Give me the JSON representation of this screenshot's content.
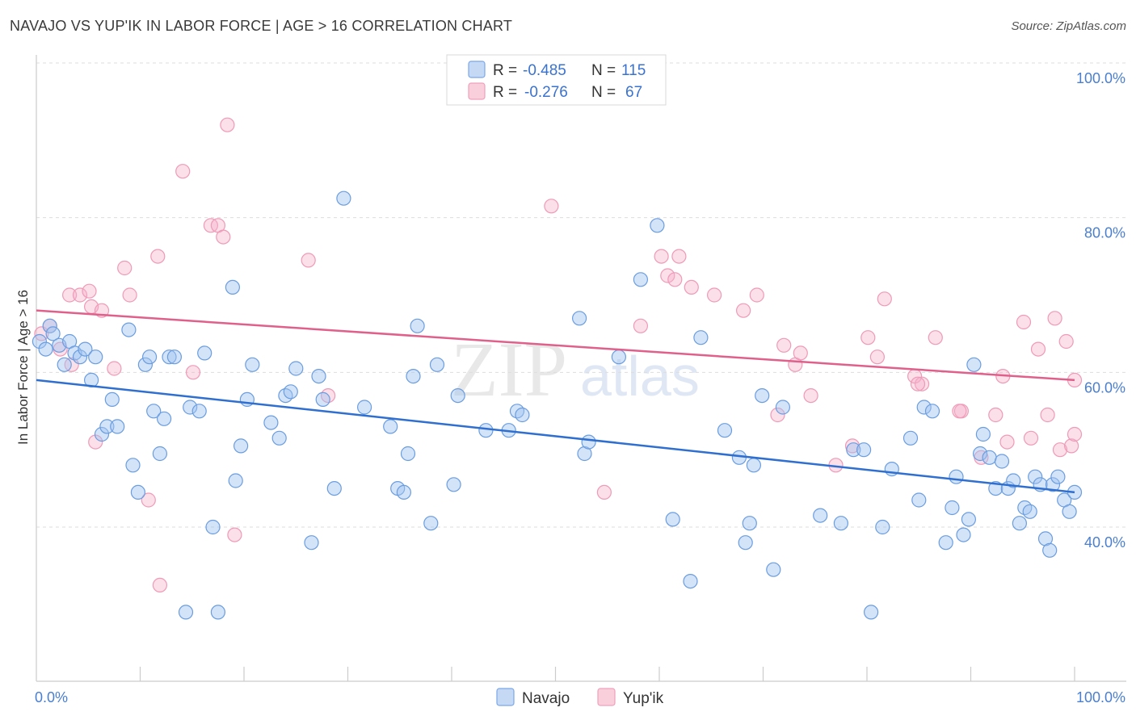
{
  "header": {
    "title": "NAVAJO VS YUP'IK IN LABOR FORCE | AGE > 16 CORRELATION CHART",
    "source": "Source: ZipAtlas.com"
  },
  "watermark": {
    "zip": "ZIP",
    "atlas": "atlas"
  },
  "legend": {
    "navajo": {
      "r_label": "R = ",
      "r_value": "-0.485",
      "n_label": "N = ",
      "n_value": "115",
      "color": "#7aa8e8"
    },
    "yupik": {
      "r_label": "R = ",
      "r_value": "-0.276",
      "n_label": "N = ",
      "n_value": "67",
      "color": "#f0a0bc"
    }
  },
  "bottom_legend": {
    "navajo": "Navajo",
    "yupik": "Yup'ik"
  },
  "chart_data": {
    "type": "scatter",
    "title": "NAVAJO VS YUP'IK IN LABOR FORCE | AGE > 16 CORRELATION CHART",
    "xlabel": "",
    "ylabel": "In Labor Force | Age > 16",
    "xlim": [
      0,
      100
    ],
    "ylim": [
      20,
      102
    ],
    "x_ticks": [
      {
        "value": 0,
        "label": "0.0%"
      },
      {
        "value": 100,
        "label": "100.0%"
      }
    ],
    "y_ticks": [
      {
        "value": 40,
        "label": "40.0%"
      },
      {
        "value": 60,
        "label": "60.0%"
      },
      {
        "value": 80,
        "label": "80.0%"
      },
      {
        "value": 100,
        "label": "100.0%"
      }
    ],
    "grid": true,
    "legend_position": "top-center",
    "series": [
      {
        "name": "Navajo",
        "color": "#6a9de0",
        "trend": {
          "x": [
            0,
            100
          ],
          "y": [
            59.0,
            44.5
          ]
        },
        "points": [
          [
            0.3,
            64.0
          ],
          [
            0.9,
            63.0
          ],
          [
            1.3,
            66.0
          ],
          [
            1.6,
            65.0
          ],
          [
            2.2,
            63.5
          ],
          [
            2.7,
            61.0
          ],
          [
            3.2,
            64.0
          ],
          [
            3.7,
            62.5
          ],
          [
            4.2,
            62.0
          ],
          [
            4.7,
            63.0
          ],
          [
            5.3,
            59.0
          ],
          [
            5.7,
            62.0
          ],
          [
            6.3,
            52.0
          ],
          [
            6.8,
            53.0
          ],
          [
            7.3,
            56.5
          ],
          [
            7.8,
            53.0
          ],
          [
            8.9,
            65.5
          ],
          [
            9.3,
            48.0
          ],
          [
            9.8,
            44.5
          ],
          [
            10.5,
            61.0
          ],
          [
            10.9,
            62.0
          ],
          [
            11.3,
            55.0
          ],
          [
            11.9,
            49.5
          ],
          [
            12.3,
            54.0
          ],
          [
            12.8,
            62.0
          ],
          [
            13.3,
            62.0
          ],
          [
            14.4,
            29.0
          ],
          [
            14.8,
            55.5
          ],
          [
            15.7,
            55.0
          ],
          [
            16.2,
            62.5
          ],
          [
            17.0,
            40.0
          ],
          [
            17.5,
            29.0
          ],
          [
            18.9,
            71.0
          ],
          [
            19.2,
            46.0
          ],
          [
            19.7,
            50.5
          ],
          [
            20.3,
            56.5
          ],
          [
            20.8,
            61.0
          ],
          [
            22.6,
            53.5
          ],
          [
            23.4,
            51.5
          ],
          [
            24.0,
            57.0
          ],
          [
            24.5,
            57.5
          ],
          [
            25.0,
            60.5
          ],
          [
            26.5,
            38.0
          ],
          [
            27.2,
            59.5
          ],
          [
            27.6,
            56.5
          ],
          [
            28.7,
            45.0
          ],
          [
            29.6,
            82.5
          ],
          [
            31.6,
            55.5
          ],
          [
            34.1,
            53.0
          ],
          [
            34.8,
            45.0
          ],
          [
            35.4,
            44.5
          ],
          [
            35.8,
            49.5
          ],
          [
            36.3,
            59.5
          ],
          [
            36.7,
            66.0
          ],
          [
            38.0,
            40.5
          ],
          [
            38.6,
            61.0
          ],
          [
            40.2,
            45.5
          ],
          [
            40.6,
            57.0
          ],
          [
            43.3,
            52.5
          ],
          [
            45.5,
            52.5
          ],
          [
            46.3,
            55.0
          ],
          [
            46.8,
            54.5
          ],
          [
            52.8,
            49.5
          ],
          [
            53.2,
            51.0
          ],
          [
            52.3,
            67.0
          ],
          [
            56.1,
            62.0
          ],
          [
            58.2,
            72.0
          ],
          [
            59.8,
            79.0
          ],
          [
            61.3,
            41.0
          ],
          [
            63.0,
            33.0
          ],
          [
            64.0,
            64.5
          ],
          [
            66.3,
            52.5
          ],
          [
            67.7,
            49.0
          ],
          [
            68.3,
            38.0
          ],
          [
            68.7,
            40.5
          ],
          [
            69.1,
            48.0
          ],
          [
            69.9,
            57.0
          ],
          [
            71.0,
            34.5
          ],
          [
            71.9,
            55.5
          ],
          [
            75.5,
            41.5
          ],
          [
            77.5,
            40.5
          ],
          [
            78.7,
            50.0
          ],
          [
            79.7,
            50.0
          ],
          [
            80.4,
            29.0
          ],
          [
            81.5,
            40.0
          ],
          [
            82.4,
            47.5
          ],
          [
            84.2,
            51.5
          ],
          [
            85.0,
            43.5
          ],
          [
            85.5,
            55.5
          ],
          [
            86.3,
            55.0
          ],
          [
            87.6,
            38.0
          ],
          [
            88.2,
            42.5
          ],
          [
            88.6,
            46.5
          ],
          [
            89.3,
            39.0
          ],
          [
            89.8,
            41.0
          ],
          [
            90.3,
            61.0
          ],
          [
            90.9,
            49.5
          ],
          [
            91.2,
            52.0
          ],
          [
            91.8,
            49.0
          ],
          [
            92.4,
            45.0
          ],
          [
            93.0,
            48.5
          ],
          [
            93.6,
            45.0
          ],
          [
            94.1,
            46.0
          ],
          [
            94.7,
            40.5
          ],
          [
            95.2,
            42.5
          ],
          [
            95.7,
            42.0
          ],
          [
            96.2,
            46.5
          ],
          [
            96.7,
            45.5
          ],
          [
            97.2,
            38.5
          ],
          [
            97.6,
            37.0
          ],
          [
            97.9,
            45.5
          ],
          [
            98.4,
            46.5
          ],
          [
            99.0,
            43.5
          ],
          [
            99.5,
            42.0
          ],
          [
            100.0,
            44.5
          ]
        ]
      },
      {
        "name": "Yup'ik",
        "color": "#f0a0bc",
        "trend": {
          "x": [
            0,
            100
          ],
          "y": [
            68.0,
            59.0
          ]
        },
        "points": [
          [
            0.5,
            65.0
          ],
          [
            1.3,
            66.0
          ],
          [
            2.3,
            63.0
          ],
          [
            3.4,
            61.0
          ],
          [
            3.2,
            70.0
          ],
          [
            4.2,
            70.0
          ],
          [
            5.1,
            70.5
          ],
          [
            5.3,
            68.5
          ],
          [
            5.7,
            51.0
          ],
          [
            6.3,
            68.0
          ],
          [
            7.5,
            60.5
          ],
          [
            8.5,
            73.5
          ],
          [
            9.0,
            70.0
          ],
          [
            10.8,
            43.5
          ],
          [
            11.7,
            75.0
          ],
          [
            11.9,
            32.5
          ],
          [
            14.1,
            86.0
          ],
          [
            15.1,
            60.0
          ],
          [
            16.8,
            79.0
          ],
          [
            17.5,
            79.0
          ],
          [
            18.0,
            77.5
          ],
          [
            18.4,
            92.0
          ],
          [
            19.1,
            39.0
          ],
          [
            26.2,
            74.5
          ],
          [
            28.1,
            57.0
          ],
          [
            41.2,
            100.0
          ],
          [
            49.6,
            81.5
          ],
          [
            54.7,
            44.5
          ],
          [
            58.2,
            66.0
          ],
          [
            60.2,
            75.0
          ],
          [
            60.8,
            72.5
          ],
          [
            61.5,
            72.0
          ],
          [
            61.9,
            75.0
          ],
          [
            63.1,
            71.0
          ],
          [
            65.3,
            70.0
          ],
          [
            68.1,
            68.0
          ],
          [
            69.4,
            70.0
          ],
          [
            71.4,
            54.5
          ],
          [
            72.0,
            63.5
          ],
          [
            73.1,
            61.0
          ],
          [
            73.6,
            62.5
          ],
          [
            74.6,
            57.0
          ],
          [
            77.0,
            48.0
          ],
          [
            78.6,
            50.5
          ],
          [
            80.1,
            64.5
          ],
          [
            81.0,
            62.0
          ],
          [
            81.7,
            69.5
          ],
          [
            84.6,
            59.5
          ],
          [
            85.3,
            58.5
          ],
          [
            86.6,
            64.5
          ],
          [
            89.1,
            55.0
          ],
          [
            91.0,
            49.0
          ],
          [
            92.4,
            54.5
          ],
          [
            93.1,
            59.5
          ],
          [
            93.5,
            51.0
          ],
          [
            95.1,
            66.5
          ],
          [
            95.8,
            51.5
          ],
          [
            96.5,
            63.0
          ],
          [
            97.4,
            54.5
          ],
          [
            98.1,
            67.0
          ],
          [
            98.6,
            50.0
          ],
          [
            99.2,
            64.0
          ],
          [
            99.7,
            50.5
          ],
          [
            100.0,
            52.0
          ],
          [
            88.9,
            55.0
          ],
          [
            84.9,
            58.5
          ],
          [
            100.0,
            59.0
          ]
        ]
      }
    ]
  }
}
